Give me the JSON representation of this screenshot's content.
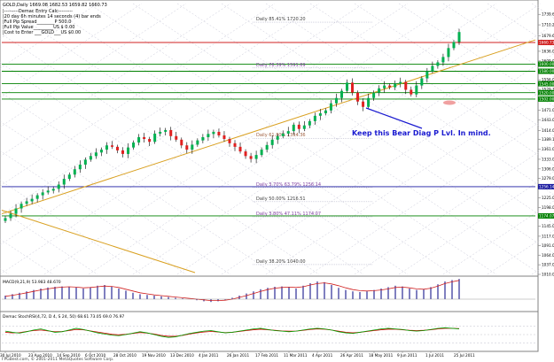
{
  "window": {
    "title": "GOLD,Daily  1669.08 1682.53 1659.82 1660.73"
  },
  "info_box": [
    "|---------Demac Entry Calc---------",
    "|20 day 6h minutes 14 seconds (4) bar ends",
    "|Full Pip Spread________P 500.0",
    "|Full Pip Value_________US $ 0.00",
    "|Cost to Enter  ___GOLD___US $0.00"
  ],
  "annotation": "Keep this Bear Diag P Lvl. In mind.",
  "fib_labels": [
    {
      "text": "Daily    85.41%  1720.20",
      "price": 1720.2
    },
    {
      "text": "Daily    76.39%  1591.69",
      "price": 1591.69
    },
    {
      "text": "Daily    61.80%  1394.36",
      "price": 1394.36
    },
    {
      "text": "Daily    3.70%  63.79%  1256.14",
      "price": 1256.14
    },
    {
      "text": "Daily    50.00%  1216.51",
      "price": 1216.51
    },
    {
      "text": "Daily    3.80%  47.11%  1174.07",
      "price": 1174.07
    },
    {
      "text": "Daily    38.20%  1040.00",
      "price": 1040.0
    }
  ],
  "macd_label": "MACD(9,21,9) 53.983 48.670",
  "stoch_label": "Demac StochRSI(4,72, D 4, S 24, 50) 68.61 73.05 69.0 76.97",
  "copyright": "FPGBest.com, © 2001-2011 MetaQuotes Software Corp.",
  "colors": {
    "bull": "#00b050",
    "bear": "#e02020",
    "trend": "#d9a020",
    "grid": "#c8c8d8",
    "fib_blue": "#1a1aa0",
    "fib_green": "#008000",
    "macd_hist": "#8080c0",
    "macd_signal": "#d02020",
    "stoch_green": "#00a000",
    "stoch_red": "#d00000"
  },
  "chart_data": {
    "type": "candlestick",
    "instrument": "GOLD",
    "timeframe": "Daily",
    "ylim": [
      1010,
      1770
    ],
    "price_ticks": [
      1739.6,
      1710.2,
      1679.6,
      1636.05,
      1609.0,
      1583.05,
      1556.0,
      1529.35,
      1500.05,
      1471.0,
      1443.0,
      1414.05,
      1389.1,
      1361.05,
      1333.0,
      1306.05,
      1279.0,
      1252.0,
      1225.05,
      1198.0,
      1172.05,
      1145.0,
      1117.0,
      1091.0,
      1064.0,
      1037.0,
      1010.0
    ],
    "price_tick_labels": [
      "1739.60",
      "1710.20",
      "1679.60",
      "1636.05",
      "1609.00",
      "1583.05",
      "1556.00",
      "1529.35",
      "1500.05",
      "1471.00",
      "1443.00",
      "1414.05",
      "1389.10",
      "1361.05",
      "1333.00",
      "1306.05",
      "1279.00",
      "1252.00",
      "1225.05",
      "1198.00",
      "1172.05",
      "1145.00",
      "1117.00",
      "1091.00",
      "1064.00",
      "1037.00",
      "1010.00"
    ],
    "marked_levels": [
      {
        "label": "1660.73",
        "price": 1660.73,
        "color": "#d02020"
      },
      {
        "label": "1600.00",
        "price": 1600,
        "color": "#008000"
      },
      {
        "label": "1580.00",
        "price": 1580,
        "color": "#008000"
      },
      {
        "label": "1545.00",
        "price": 1545,
        "color": "#008000"
      },
      {
        "label": "1520.00",
        "price": 1520,
        "color": "#008000"
      },
      {
        "label": "1502.00",
        "price": 1502,
        "color": "#008000"
      },
      {
        "label": "1256.14",
        "price": 1256.14,
        "color": "#1a1aa0"
      },
      {
        "label": "1174.07",
        "price": 1174.07,
        "color": "#008000"
      }
    ],
    "date_labels": [
      "30 Jul 2010",
      "23 Aug 2010",
      "14 Sep 2010",
      "6 Oct 2010",
      "28 Oct 2010",
      "19 Nov 2010",
      "13 Dec 2010",
      "4 Jan 2011",
      "26 Jan 2011",
      "17 Feb 2011",
      "11 Mar 2011",
      "4 Apr 2011",
      "26 Apr 2011",
      "18 May 2011",
      "9 Jun 2011",
      "1 Jul 2011",
      "25 Jul 2011"
    ],
    "closes": [
      1168,
      1180,
      1195,
      1208,
      1215,
      1222,
      1232,
      1240,
      1245,
      1250,
      1262,
      1278,
      1290,
      1305,
      1318,
      1332,
      1342,
      1352,
      1360,
      1372,
      1368,
      1358,
      1348,
      1366,
      1380,
      1395,
      1390,
      1382,
      1405,
      1410,
      1415,
      1398,
      1388,
      1372,
      1360,
      1374,
      1386,
      1395,
      1404,
      1410,
      1400,
      1390,
      1378,
      1368,
      1355,
      1342,
      1334,
      1345,
      1360,
      1373,
      1388,
      1398,
      1405,
      1412,
      1430,
      1418,
      1428,
      1440,
      1455,
      1462,
      1470,
      1490,
      1505,
      1525,
      1548,
      1520,
      1495,
      1480,
      1505,
      1520,
      1532,
      1540,
      1535,
      1545,
      1550,
      1528,
      1515,
      1540,
      1560,
      1580,
      1595,
      1605,
      1620,
      1645,
      1662,
      1690
    ],
    "macd": {
      "range": [
        -30,
        60
      ],
      "histogram": [
        10,
        14,
        18,
        22,
        26,
        30,
        33,
        35,
        36,
        35,
        33,
        30,
        34,
        38,
        40,
        36,
        30,
        24,
        18,
        14,
        12,
        10,
        8,
        6,
        4,
        2,
        0,
        -3,
        -6,
        -8,
        -6,
        -2,
        4,
        10,
        16,
        22,
        28,
        32,
        35,
        36,
        34,
        30,
        38,
        45,
        50,
        48,
        40,
        32,
        26,
        22,
        20,
        22,
        26,
        30,
        34,
        38,
        36,
        30,
        26,
        28,
        34,
        42,
        50,
        54,
        57
      ],
      "signal": [
        8,
        11,
        14,
        18,
        22,
        26,
        29,
        32,
        34,
        35,
        34,
        32,
        33,
        35,
        37,
        36,
        33,
        28,
        23,
        18,
        15,
        12,
        10,
        8,
        6,
        4,
        2,
        0,
        -2,
        -4,
        -4,
        -3,
        0,
        5,
        10,
        16,
        22,
        27,
        31,
        33,
        34,
        33,
        35,
        40,
        44,
        46,
        43,
        38,
        32,
        27,
        24,
        23,
        24,
        26,
        29,
        33,
        34,
        32,
        29,
        28,
        31,
        37,
        44,
        49,
        53
      ]
    },
    "stoch": {
      "range": [
        0,
        100
      ],
      "green": [
        62,
        58,
        55,
        60,
        66,
        70,
        64,
        58,
        60,
        66,
        72,
        68,
        62,
        56,
        52,
        48,
        46,
        50,
        55,
        60,
        56,
        50,
        44,
        40,
        42,
        48,
        54,
        58,
        62,
        64,
        60,
        56,
        58,
        62,
        66,
        70,
        72,
        68,
        64,
        62,
        60,
        62,
        66,
        70,
        72,
        70,
        66,
        60,
        56,
        54,
        58,
        62,
        66,
        70,
        72,
        70,
        68,
        64,
        62,
        64,
        68,
        72,
        74,
        72,
        70
      ],
      "red": [
        58,
        56,
        57,
        61,
        64,
        66,
        63,
        60,
        61,
        64,
        68,
        67,
        63,
        59,
        55,
        51,
        49,
        51,
        54,
        57,
        55,
        52,
        47,
        44,
        44,
        47,
        52,
        56,
        59,
        61,
        59,
        57,
        58,
        61,
        64,
        67,
        69,
        67,
        65,
        63,
        62,
        62,
        65,
        68,
        70,
        69,
        66,
        62,
        58,
        56,
        58,
        61,
        64,
        67,
        69,
        69,
        67,
        65,
        64,
        65,
        67,
        70,
        72,
        72,
        71
      ]
    }
  }
}
